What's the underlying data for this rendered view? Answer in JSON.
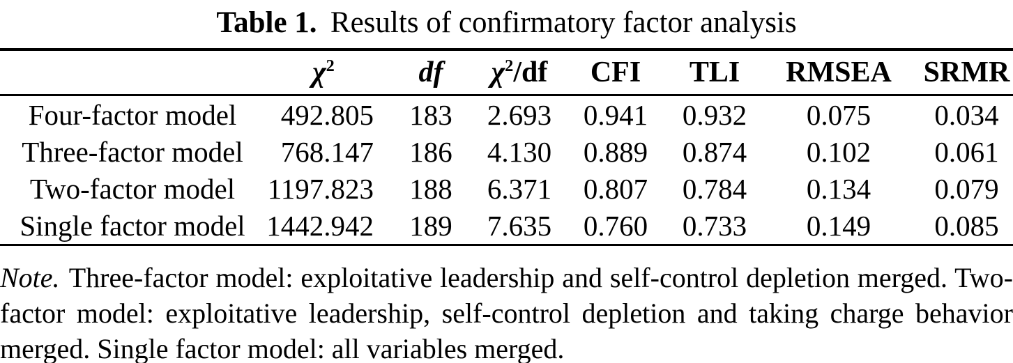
{
  "caption": {
    "label": "Table 1.",
    "text": "Results of confirmatory factor analysis"
  },
  "table": {
    "header": {
      "model": "",
      "chi2": {
        "base": "χ",
        "sup": "2"
      },
      "df": "df",
      "chi2df": {
        "base": "χ",
        "sup": "2",
        "rest": "/df"
      },
      "cfi": "CFI",
      "tli": "TLI",
      "rmsea": "RMSEA",
      "srmr": "SRMR"
    },
    "rows": [
      {
        "model": "Four-factor model",
        "chi2": "492.805",
        "df": "183",
        "chi2df": "2.693",
        "cfi": "0.941",
        "tli": "0.932",
        "rmsea": "0.075",
        "srmr": "0.034"
      },
      {
        "model": "Three-factor model",
        "chi2": "768.147",
        "df": "186",
        "chi2df": "4.130",
        "cfi": "0.889",
        "tli": "0.874",
        "rmsea": "0.102",
        "srmr": "0.061"
      },
      {
        "model": "Two-factor model",
        "chi2": "1197.823",
        "df": "188",
        "chi2df": "6.371",
        "cfi": "0.807",
        "tli": "0.784",
        "rmsea": "0.134",
        "srmr": "0.079"
      },
      {
        "model": "Single factor model",
        "chi2": "1442.942",
        "df": "189",
        "chi2df": "7.635",
        "cfi": "0.760",
        "tli": "0.733",
        "rmsea": "0.149",
        "srmr": "0.085"
      }
    ]
  },
  "note": {
    "label": "Note.",
    "text": "Three-factor model: exploitative leadership and self-control depletion merged. Two-factor model: exploitative leadership, self-control depletion and taking charge behavior merged. Single factor model: all variables merged."
  },
  "colors": {
    "text": "#000000",
    "background": "#ffffff",
    "rule": "#000000"
  }
}
